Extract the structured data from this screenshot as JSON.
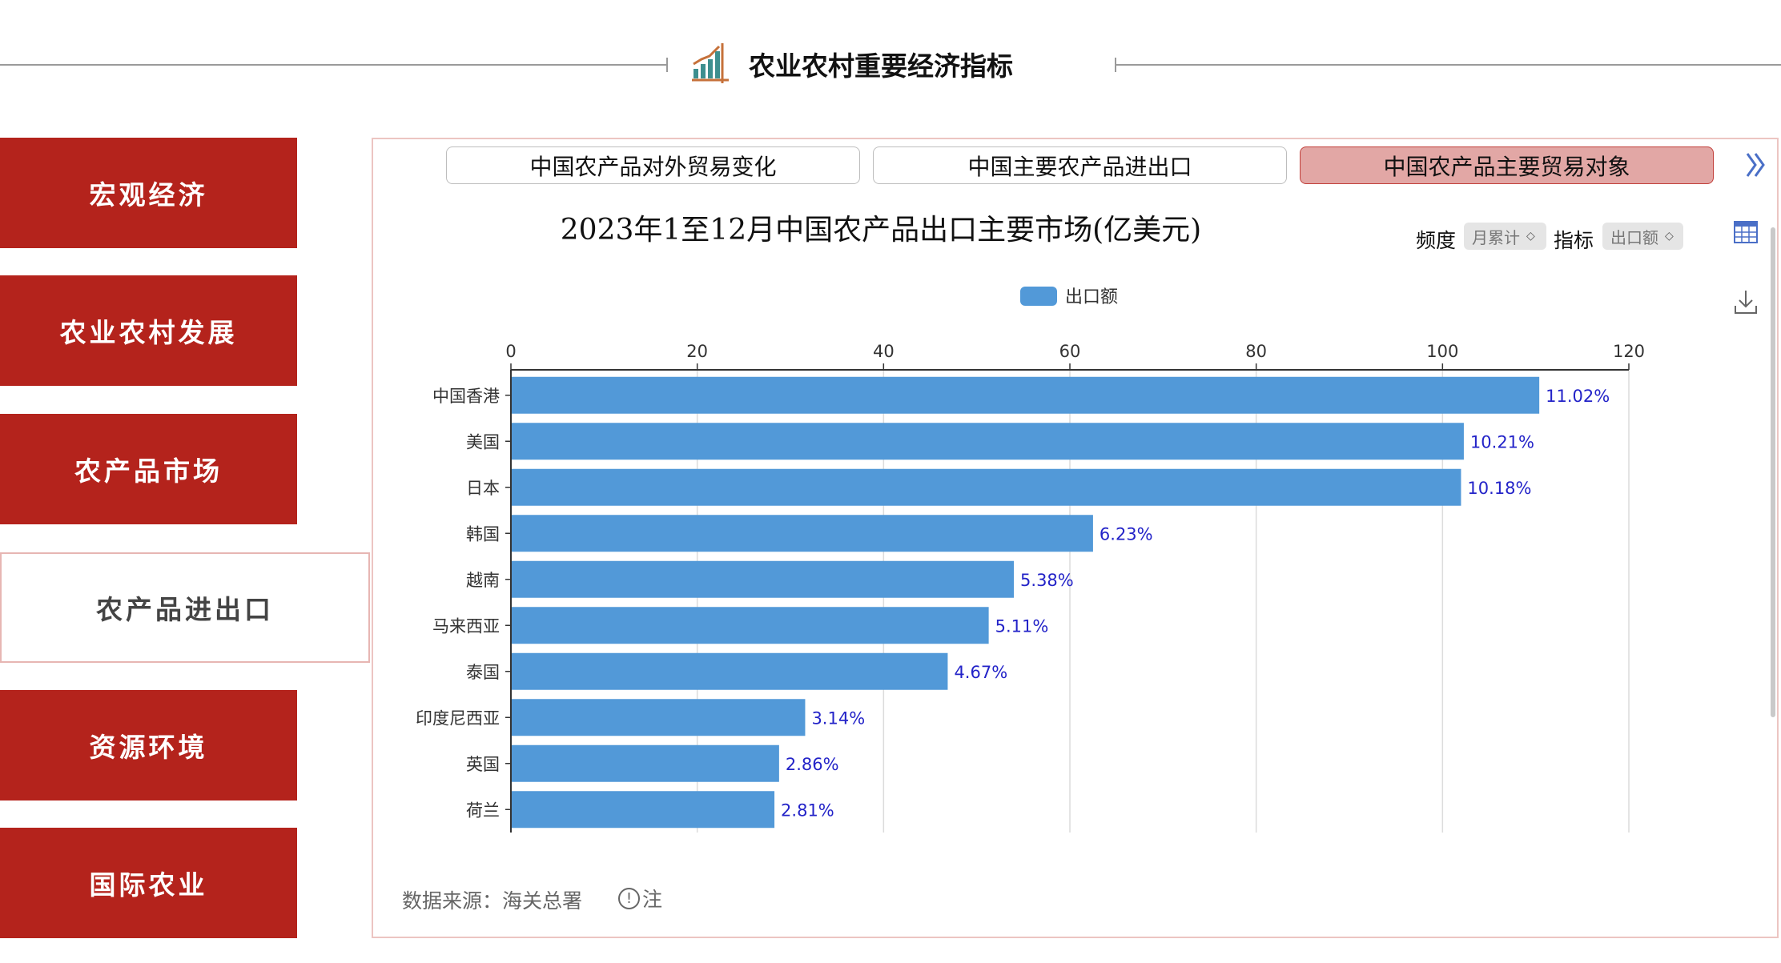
{
  "header": {
    "title": "农业农村重要经济指标",
    "icon": "bar-chart-growth-icon"
  },
  "sidebar": {
    "items": [
      {
        "label": "宏观经济",
        "active": false
      },
      {
        "label": "农业农村发展",
        "active": false
      },
      {
        "label": "农产品市场",
        "active": false
      },
      {
        "label": "农产品进出口",
        "active": true
      },
      {
        "label": "资源环境",
        "active": false
      },
      {
        "label": "国际农业",
        "active": false
      }
    ]
  },
  "tabs": [
    {
      "label": "中国农产品对外贸易变化",
      "active": false
    },
    {
      "label": "中国主要农产品进出口",
      "active": false
    },
    {
      "label": "中国农产品主要贸易对象",
      "active": true
    }
  ],
  "controls": {
    "frequency_label": "频度",
    "frequency_value": "月累计",
    "indicator_label": "指标",
    "indicator_value": "出口额"
  },
  "colors": {
    "accent": "#b4231c",
    "bar": "#5299d8",
    "data_label": "#2323c8"
  },
  "chart_data": {
    "type": "bar",
    "orientation": "horizontal",
    "title": "2023年1至12月中国农产品出口主要市场(亿美元)",
    "legend": {
      "entries": [
        "出口额"
      ],
      "position": "top-center"
    },
    "categories": [
      "中国香港",
      "美国",
      "日本",
      "韩国",
      "越南",
      "马来西亚",
      "泰国",
      "印度尼西亚",
      "英国",
      "荷兰"
    ],
    "series": [
      {
        "name": "出口额",
        "values": [
          110.3,
          102.2,
          101.9,
          62.4,
          53.9,
          51.2,
          46.8,
          31.5,
          28.7,
          28.2
        ]
      }
    ],
    "data_labels": [
      "11.02%",
      "10.21%",
      "10.18%",
      "6.23%",
      "5.38%",
      "5.11%",
      "4.67%",
      "3.14%",
      "2.86%",
      "2.81%"
    ],
    "axis_ticks": [
      "0",
      "20",
      "40",
      "60",
      "80",
      "100",
      "120"
    ],
    "xlim": [
      0,
      120
    ],
    "grid": true,
    "axis_position": "top"
  },
  "footer": {
    "source": "数据来源：海关总署",
    "note_label": "注"
  }
}
